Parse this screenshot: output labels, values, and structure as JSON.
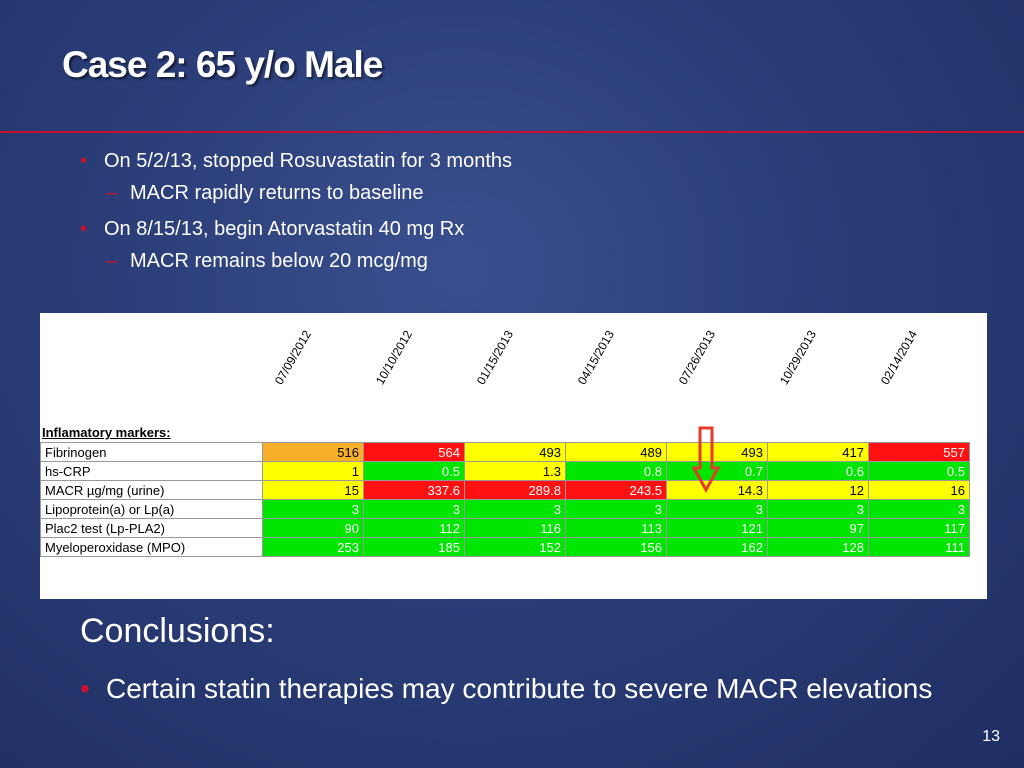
{
  "slide": {
    "title": "Case 2: 65 y/o Male",
    "number": "13"
  },
  "bullets": [
    {
      "text": "On 5/2/13, stopped Rosuvastatin for 3 months",
      "sub": "MACR rapidly returns to baseline"
    },
    {
      "text": "On 8/15/13, begin Atorvastatin 40 mg Rx",
      "sub": "MACR remains below 20 mcg/mg"
    }
  ],
  "table": {
    "dates": [
      "07/09/2012",
      "10/10/2012",
      "01/15/2013",
      "04/15/2013",
      "07/26/2013",
      "10/29/2013",
      "02/14/2014"
    ],
    "section_label": "Inflamatory markers:",
    "rows": [
      {
        "label": "Fibrinogen",
        "values": [
          "516",
          "564",
          "493",
          "489",
          "493",
          "417",
          "557"
        ],
        "colors": [
          "orange",
          "red",
          "yellow",
          "yellow",
          "yellow",
          "yellow",
          "red"
        ]
      },
      {
        "label": "hs-CRP",
        "values": [
          "1",
          "0.5",
          "1.3",
          "0.8",
          "0.7",
          "0.6",
          "0.5"
        ],
        "colors": [
          "yellow",
          "green",
          "yellow",
          "green",
          "green",
          "green",
          "green"
        ]
      },
      {
        "label": "MACR µg/mg (urine)",
        "values": [
          "15",
          "337.6",
          "289.8",
          "243.5",
          "14.3",
          "12",
          "16"
        ],
        "colors": [
          "yellow",
          "red",
          "red",
          "red",
          "yellow",
          "yellow",
          "yellow"
        ]
      },
      {
        "label": "Lipoprotein(a) or Lp(a)",
        "values": [
          "3",
          "3",
          "3",
          "3",
          "3",
          "3",
          "3"
        ],
        "colors": [
          "green",
          "green",
          "green",
          "green",
          "green",
          "green",
          "green"
        ]
      },
      {
        "label": "Plac2 test (Lp-PLA2)",
        "values": [
          "90",
          "112",
          "116",
          "113",
          "121",
          "97",
          "117"
        ],
        "colors": [
          "green",
          "green",
          "green",
          "green",
          "green",
          "green",
          "green"
        ]
      },
      {
        "label": "Myeloperoxidase (MPO)",
        "values": [
          "253",
          "185",
          "152",
          "156",
          "162",
          "128",
          "111"
        ],
        "colors": [
          "green",
          "green",
          "green",
          "green",
          "green",
          "green",
          "green"
        ]
      }
    ],
    "arrow_color": "#e53a2a"
  },
  "conclusions": {
    "heading": "Conclusions:",
    "bullet": "Certain statin therapies may contribute to severe MACR elevations"
  },
  "colors": {
    "accent_red": "#c8102e",
    "cell_orange": "#f8b02a",
    "cell_red": "#ff1111",
    "cell_yellow": "#ffff00",
    "cell_green": "#00e600"
  }
}
